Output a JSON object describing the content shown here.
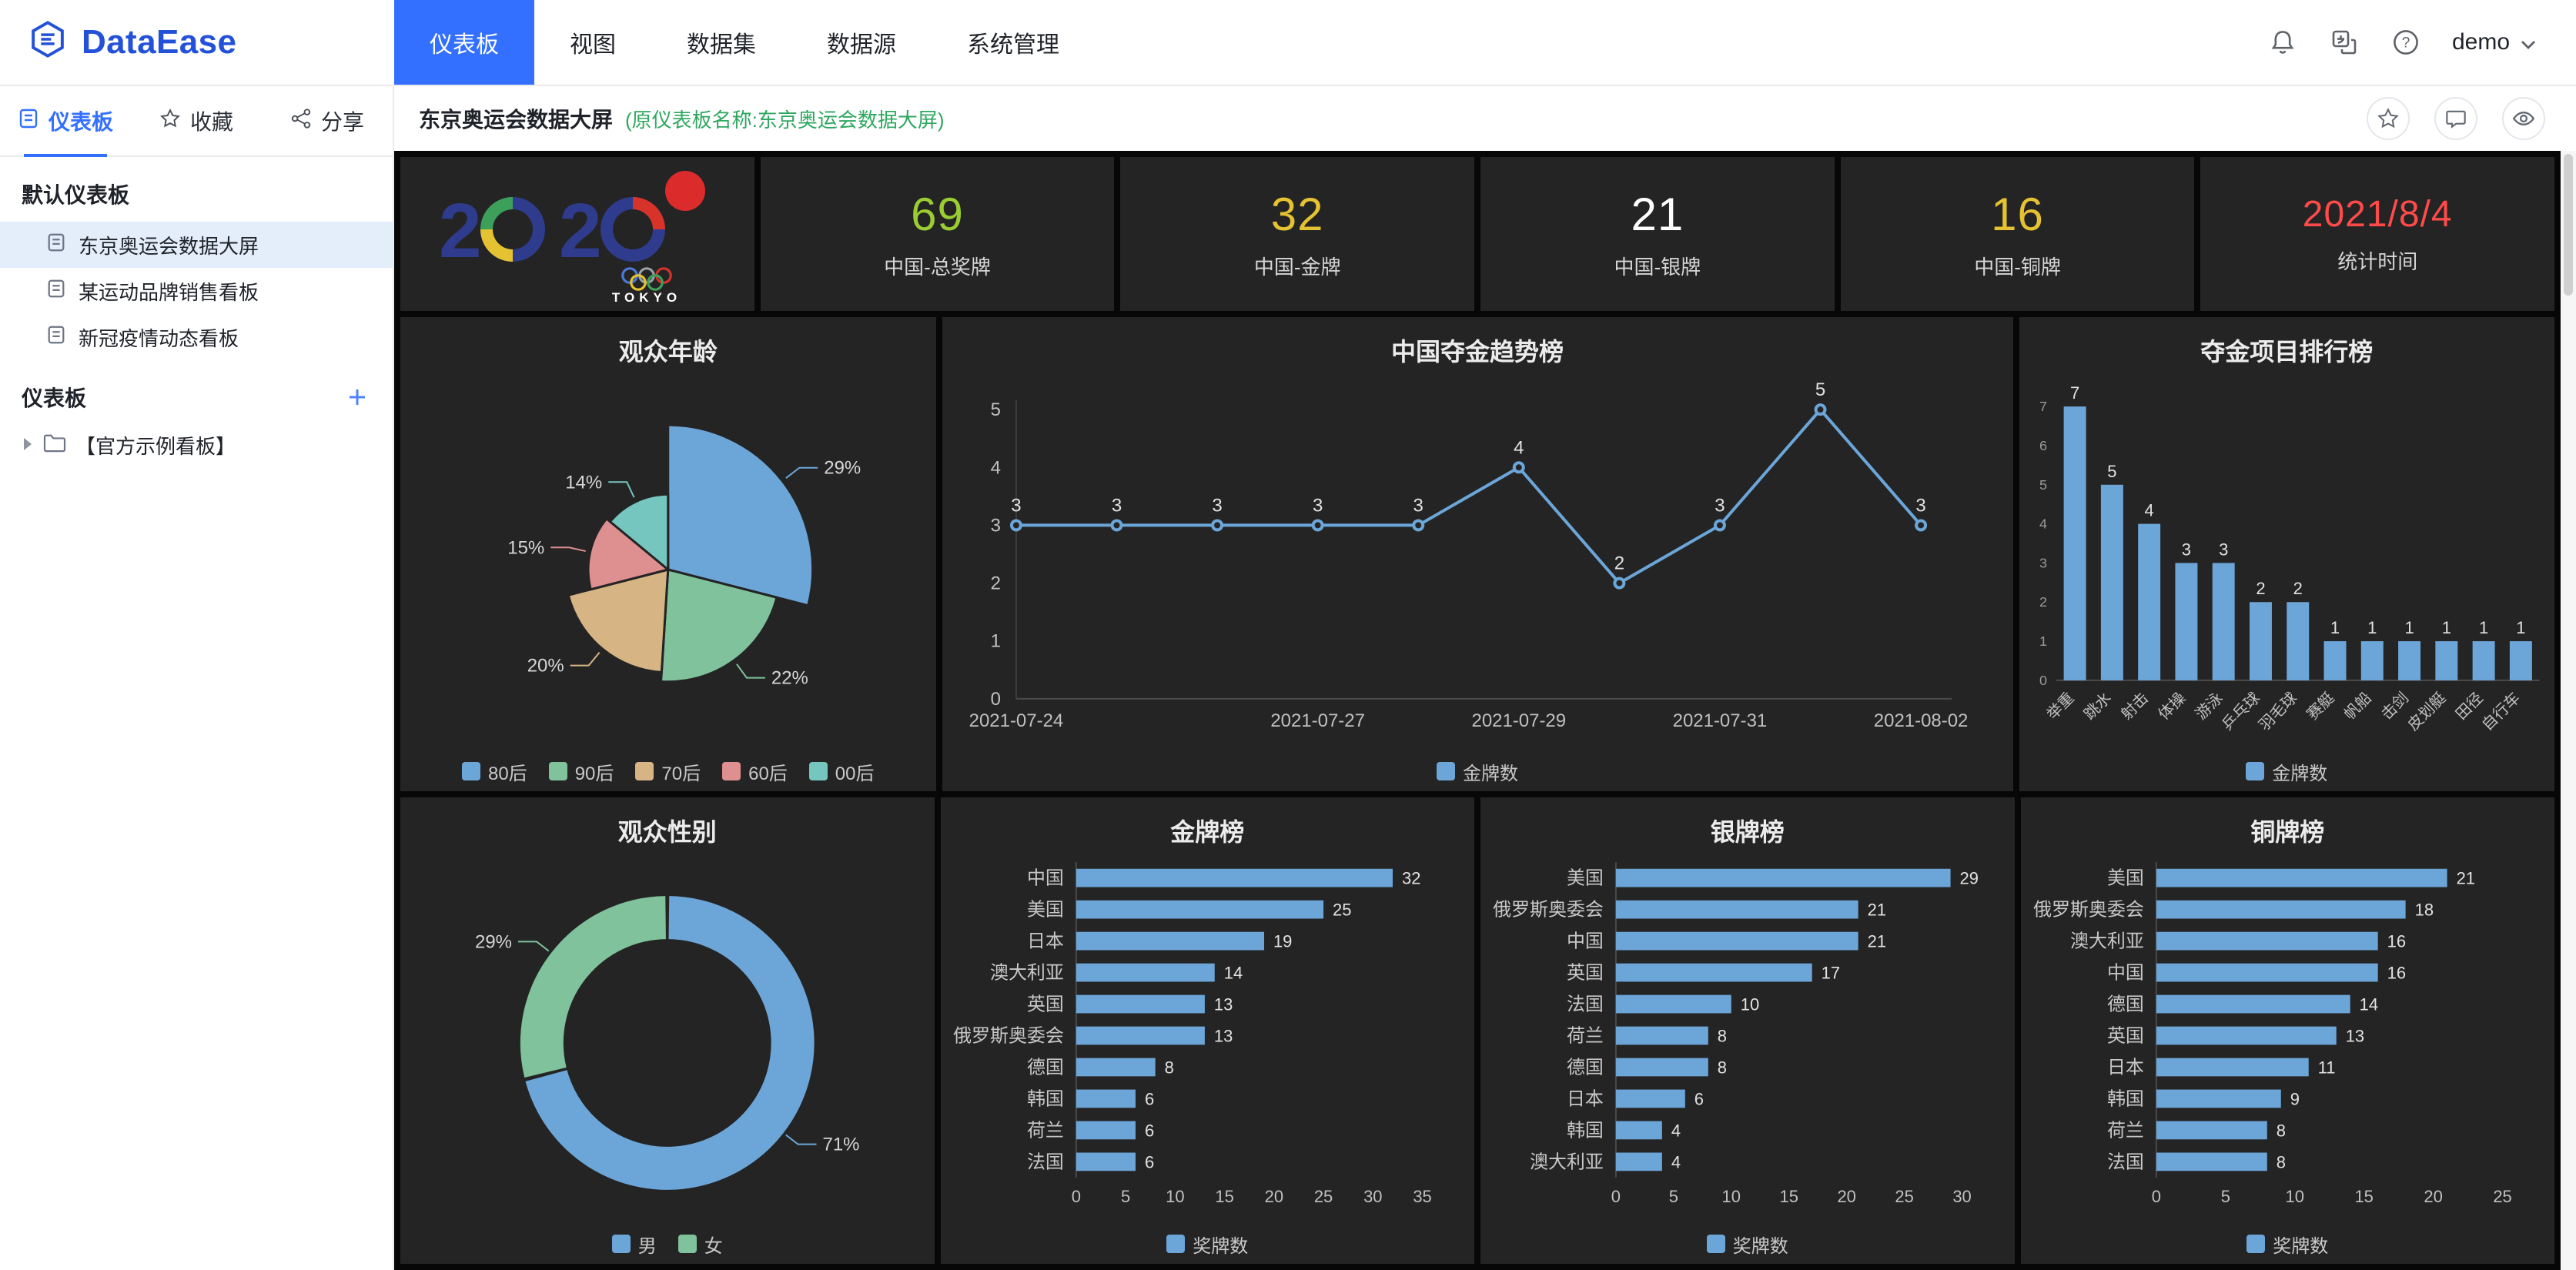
{
  "colors": {
    "accent_blue": "#3370FF",
    "brand_blue": "#2351D8",
    "subtitle_green": "#2EA75F",
    "chart_blue": "#6CA6D9",
    "panel_bg": "#242424",
    "canvas_bg": "#070707"
  },
  "icons": {
    "help_glyph": "?"
  },
  "topbar": {
    "brand": "DataEase",
    "nav": [
      {
        "label": "仪表板",
        "active": true
      },
      {
        "label": "视图",
        "active": false
      },
      {
        "label": "数据集",
        "active": false
      },
      {
        "label": "数据源",
        "active": false
      },
      {
        "label": "系统管理",
        "active": false
      }
    ],
    "user": "demo"
  },
  "sidebar": {
    "tabs": [
      {
        "label": "仪表板",
        "active": true
      },
      {
        "label": "收藏",
        "active": false
      },
      {
        "label": "分享",
        "active": false
      }
    ],
    "section_default": "默认仪表板",
    "default_items": [
      {
        "label": "东京奥运会数据大屏",
        "selected": true
      },
      {
        "label": "某运动品牌销售看板",
        "selected": false
      },
      {
        "label": "新冠疫情动态看板",
        "selected": false
      }
    ],
    "section_boards": "仪表板",
    "folder": "【官方示例看板】"
  },
  "content_header": {
    "title": "东京奥运会数据大屏",
    "subtitle": "(原仪表板名称:东京奥运会数据大屏)"
  },
  "logo_card": {
    "digits": [
      "2",
      "0",
      "2",
      "0"
    ],
    "caption": "TOKYO"
  },
  "kpis": [
    {
      "value": "69",
      "label": "中国-总奖牌",
      "color": "#9ACD32"
    },
    {
      "value": "32",
      "label": "中国-金牌",
      "color": "#E5C231"
    },
    {
      "value": "21",
      "label": "中国-银牌",
      "color": "#FFFFFF"
    },
    {
      "value": "16",
      "label": "中国-铜牌",
      "color": "#E5C231"
    },
    {
      "value": "2021/8/4",
      "label": "统计时间",
      "color": "#FF4A4A"
    }
  ],
  "chart_data": [
    {
      "id": "audience-age",
      "type": "pie",
      "variant": "rose",
      "title": "观众年龄",
      "labels": [
        "80后",
        "90后",
        "70后",
        "60后",
        "00后"
      ],
      "values": [
        29,
        22,
        20,
        15,
        14
      ],
      "unit": "%",
      "colors": [
        "#6CA6D9",
        "#7FC29B",
        "#D6B483",
        "#DE8F8F",
        "#74C6BE"
      ],
      "legend_position": "bottom"
    },
    {
      "id": "china-gold-trend",
      "type": "line",
      "title": "中国夺金趋势榜",
      "x": [
        "2021-07-24",
        "2021-07-25",
        "2021-07-26",
        "2021-07-27",
        "2021-07-28",
        "2021-07-29",
        "2021-07-30",
        "2021-07-31",
        "2021-08-01",
        "2021-08-02"
      ],
      "x_ticks": [
        "2021-07-24",
        "2021-07-27",
        "2021-07-29",
        "2021-07-31",
        "2021-08-02"
      ],
      "x_tick_idx": [
        0,
        3,
        5,
        7,
        9
      ],
      "values": [
        3,
        3,
        3,
        3,
        3,
        4,
        2,
        3,
        5,
        3
      ],
      "ylim": [
        0,
        5
      ],
      "yticks": [
        0,
        1,
        2,
        3,
        4,
        5
      ],
      "series_name": "金牌数",
      "color": "#6CA6D9",
      "legend_position": "bottom",
      "grid": false
    },
    {
      "id": "gold-by-sport",
      "type": "bar",
      "orientation": "vertical",
      "title": "夺金项目排行榜",
      "categories": [
        "举重",
        "跳水",
        "射击",
        "体操",
        "游泳",
        "乒乓球",
        "羽毛球",
        "赛艇",
        "帆船",
        "击剑",
        "皮划艇",
        "田径",
        "自行车"
      ],
      "values": [
        7,
        5,
        4,
        3,
        3,
        2,
        2,
        1,
        1,
        1,
        1,
        1,
        1
      ],
      "ylim": [
        0,
        7
      ],
      "series_name": "金牌数",
      "color": "#6CA6D9",
      "legend_position": "bottom"
    },
    {
      "id": "audience-gender",
      "type": "pie",
      "variant": "donut",
      "title": "观众性别",
      "labels": [
        "男",
        "女"
      ],
      "values": [
        71,
        29
      ],
      "unit": "%",
      "colors": [
        "#6CA6D9",
        "#7FC29B"
      ],
      "legend_position": "bottom"
    },
    {
      "id": "gold-medals",
      "type": "bar",
      "orientation": "horizontal",
      "title": "金牌榜",
      "categories": [
        "中国",
        "美国",
        "日本",
        "澳大利亚",
        "英国",
        "俄罗斯奥委会",
        "德国",
        "韩国",
        "荷兰",
        "法国"
      ],
      "values": [
        32,
        25,
        19,
        14,
        13,
        13,
        8,
        6,
        6,
        6
      ],
      "xlim": [
        0,
        35
      ],
      "xticks": [
        0,
        5,
        10,
        15,
        20,
        25,
        30,
        35
      ],
      "series_name": "奖牌数",
      "color": "#6CA6D9",
      "legend_position": "bottom"
    },
    {
      "id": "silver-medals",
      "type": "bar",
      "orientation": "horizontal",
      "title": "银牌榜",
      "categories": [
        "美国",
        "俄罗斯奥委会",
        "中国",
        "英国",
        "法国",
        "荷兰",
        "德国",
        "日本",
        "韩国",
        "澳大利亚"
      ],
      "values": [
        29,
        21,
        21,
        17,
        10,
        8,
        8,
        6,
        4,
        4
      ],
      "xlim": [
        0,
        30
      ],
      "xticks": [
        0,
        5,
        10,
        15,
        20,
        25,
        30
      ],
      "series_name": "奖牌数",
      "color": "#6CA6D9",
      "legend_position": "bottom"
    },
    {
      "id": "bronze-medals",
      "type": "bar",
      "orientation": "horizontal",
      "title": "铜牌榜",
      "categories": [
        "美国",
        "俄罗斯奥委会",
        "澳大利亚",
        "中国",
        "德国",
        "英国",
        "日本",
        "韩国",
        "荷兰",
        "法国"
      ],
      "values": [
        21,
        18,
        16,
        16,
        14,
        13,
        11,
        9,
        8,
        8
      ],
      "xlim": [
        0,
        25
      ],
      "xticks": [
        0,
        5,
        10,
        15,
        20,
        25
      ],
      "series_name": "奖牌数",
      "color": "#6CA6D9",
      "legend_position": "bottom"
    }
  ]
}
